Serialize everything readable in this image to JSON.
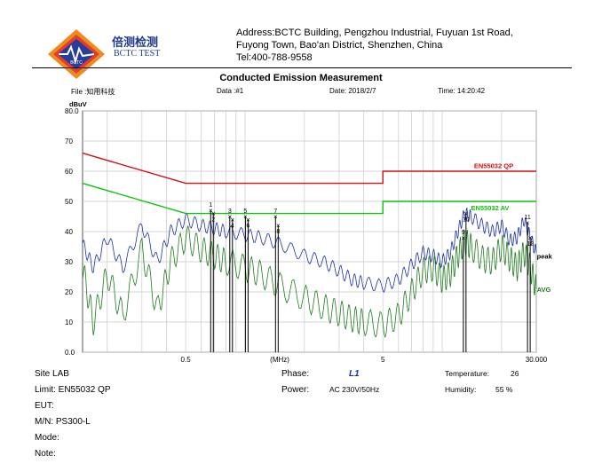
{
  "header": {
    "logo_name": "BCTC logo",
    "brand_cn": "倍测检测",
    "brand_en": "BCTC TEST",
    "address_line1": "Address:BCTC Building, Pengzhou Industrial, Fuyuan 1st Road,",
    "address_line2": "Fuyong Town, Bao'an District, Shenzhen, China",
    "tel": "Tel:400-788-9558"
  },
  "report": {
    "title": "Conducted Emission Measurement",
    "file": "File :知用科技",
    "data": "Data :#1",
    "date": "Date: 2018/2/7",
    "time": "Time: 14:20:42"
  },
  "chart_data": {
    "type": "line",
    "ylabel": "dBuV",
    "xlabel": "(MHz)",
    "x_scale": "log",
    "xlim": [
      0.15,
      30
    ],
    "ylim": [
      0,
      80
    ],
    "grid": true,
    "y_ticks": [
      "80.0",
      "70",
      "60",
      "50",
      "40",
      "30",
      "20",
      "10",
      "0.0"
    ],
    "y_tick_values": [
      80,
      70,
      60,
      50,
      40,
      30,
      20,
      10,
      0
    ],
    "x_tick_labels": [
      {
        "label": "0.5",
        "value": 0.5
      },
      {
        "label": "(MHz)",
        "value": 1.5
      },
      {
        "label": "5",
        "value": 5
      },
      {
        "label": "30.000",
        "value": 30
      }
    ],
    "limits": [
      {
        "name": "EN55032 QP",
        "color": "#d01010",
        "points": [
          [
            0.15,
            66
          ],
          [
            0.5,
            56
          ],
          [
            5,
            56
          ],
          [
            5,
            60
          ],
          [
            30,
            60
          ]
        ]
      },
      {
        "name": "EN55032 AV",
        "color": "#10c010",
        "points": [
          [
            0.15,
            56
          ],
          [
            0.5,
            46
          ],
          [
            5,
            46
          ],
          [
            5,
            50
          ],
          [
            30,
            50
          ]
        ]
      }
    ],
    "series": [
      {
        "name": "peak",
        "color": "#1a2fa8",
        "points": [
          [
            0.15,
            36
          ],
          [
            0.17,
            28
          ],
          [
            0.2,
            38
          ],
          [
            0.24,
            28
          ],
          [
            0.3,
            42
          ],
          [
            0.36,
            30
          ],
          [
            0.42,
            40
          ],
          [
            0.5,
            44
          ],
          [
            0.6,
            42
          ],
          [
            0.7,
            41
          ],
          [
            0.8,
            40
          ],
          [
            1.0,
            39
          ],
          [
            1.2,
            38
          ],
          [
            1.5,
            36
          ],
          [
            2.0,
            32
          ],
          [
            2.5,
            30
          ],
          [
            3.0,
            27
          ],
          [
            3.5,
            24
          ],
          [
            4.0,
            23
          ],
          [
            5.0,
            22
          ],
          [
            6.0,
            24
          ],
          [
            7.0,
            29
          ],
          [
            8.0,
            33
          ],
          [
            9.0,
            32
          ],
          [
            10.0,
            30
          ],
          [
            11.0,
            33
          ],
          [
            12.0,
            40
          ],
          [
            13.0,
            46
          ],
          [
            14.0,
            45
          ],
          [
            16.0,
            42
          ],
          [
            18.0,
            40
          ],
          [
            20.0,
            42
          ],
          [
            22.0,
            37
          ],
          [
            24.0,
            38
          ],
          [
            26.0,
            44
          ],
          [
            28.0,
            38
          ],
          [
            30.0,
            33
          ]
        ]
      },
      {
        "name": "AVG",
        "color": "#1f7a1f",
        "points": [
          [
            0.15,
            28
          ],
          [
            0.17,
            10
          ],
          [
            0.2,
            26
          ],
          [
            0.24,
            12
          ],
          [
            0.3,
            34
          ],
          [
            0.36,
            14
          ],
          [
            0.42,
            30
          ],
          [
            0.5,
            38
          ],
          [
            0.6,
            34
          ],
          [
            0.7,
            32
          ],
          [
            0.8,
            30
          ],
          [
            1.0,
            28
          ],
          [
            1.2,
            26
          ],
          [
            1.5,
            22
          ],
          [
            2.0,
            18
          ],
          [
            2.5,
            15
          ],
          [
            3.0,
            13
          ],
          [
            3.5,
            11
          ],
          [
            4.0,
            10
          ],
          [
            5.0,
            9
          ],
          [
            6.0,
            12
          ],
          [
            7.0,
            20
          ],
          [
            8.0,
            27
          ],
          [
            9.0,
            28
          ],
          [
            10.0,
            24
          ],
          [
            11.0,
            26
          ],
          [
            12.0,
            32
          ],
          [
            13.0,
            37
          ],
          [
            14.0,
            35
          ],
          [
            16.0,
            31
          ],
          [
            18.0,
            30
          ],
          [
            20.0,
            35
          ],
          [
            22.0,
            31
          ],
          [
            24.0,
            28
          ],
          [
            26.0,
            33
          ],
          [
            28.0,
            28
          ],
          [
            30.0,
            21
          ]
        ]
      }
    ],
    "markers": [
      {
        "label": "1",
        "x": 0.68,
        "top": 47
      },
      {
        "label": "2",
        "x": 0.68,
        "top": 46
      },
      {
        "label": "3",
        "x": 0.85,
        "top": 45
      },
      {
        "label": "4",
        "x": 0.85,
        "top": 44
      },
      {
        "label": "5",
        "x": 1.02,
        "top": 45
      },
      {
        "label": "6",
        "x": 1.02,
        "top": 44
      },
      {
        "label": "7",
        "x": 1.45,
        "top": 45
      },
      {
        "label": "8",
        "x": 1.45,
        "top": 42
      },
      {
        "label": "9",
        "x": 13.0,
        "top": 38
      },
      {
        "label": "10",
        "x": 13.0,
        "top": 46
      },
      {
        "label": "11",
        "x": 27.5,
        "top": 43
      },
      {
        "label": "12",
        "x": 27.5,
        "top": 38
      }
    ],
    "annotations": [
      {
        "text": "EN55032   QP",
        "color": "#d01010",
        "x": 14.5,
        "y": 61
      },
      {
        "text": "EN55032   AV",
        "color": "#10c010",
        "x": 14.0,
        "y": 47
      },
      {
        "text": "peak",
        "color": "#000000",
        "x": 30.2,
        "y": 31
      },
      {
        "text": "AVG",
        "color": "#1f7a1f",
        "x": 30.2,
        "y": 20
      }
    ]
  },
  "footer": {
    "site": "Site  LAB",
    "limit": "Limit:  EN55032    QP",
    "eut": "EUT:",
    "mn": "M/N:   PS300-L",
    "mode": "Mode:",
    "note": "Note:",
    "phase_label": "Phase:",
    "phase_value": "L1",
    "power_label": "Power:",
    "power_value": "AC 230V/50Hz",
    "temperature_label": "Temperature:",
    "temperature_value": "26",
    "humidity_label": "Humidity:",
    "humidity_value": "55 %"
  }
}
